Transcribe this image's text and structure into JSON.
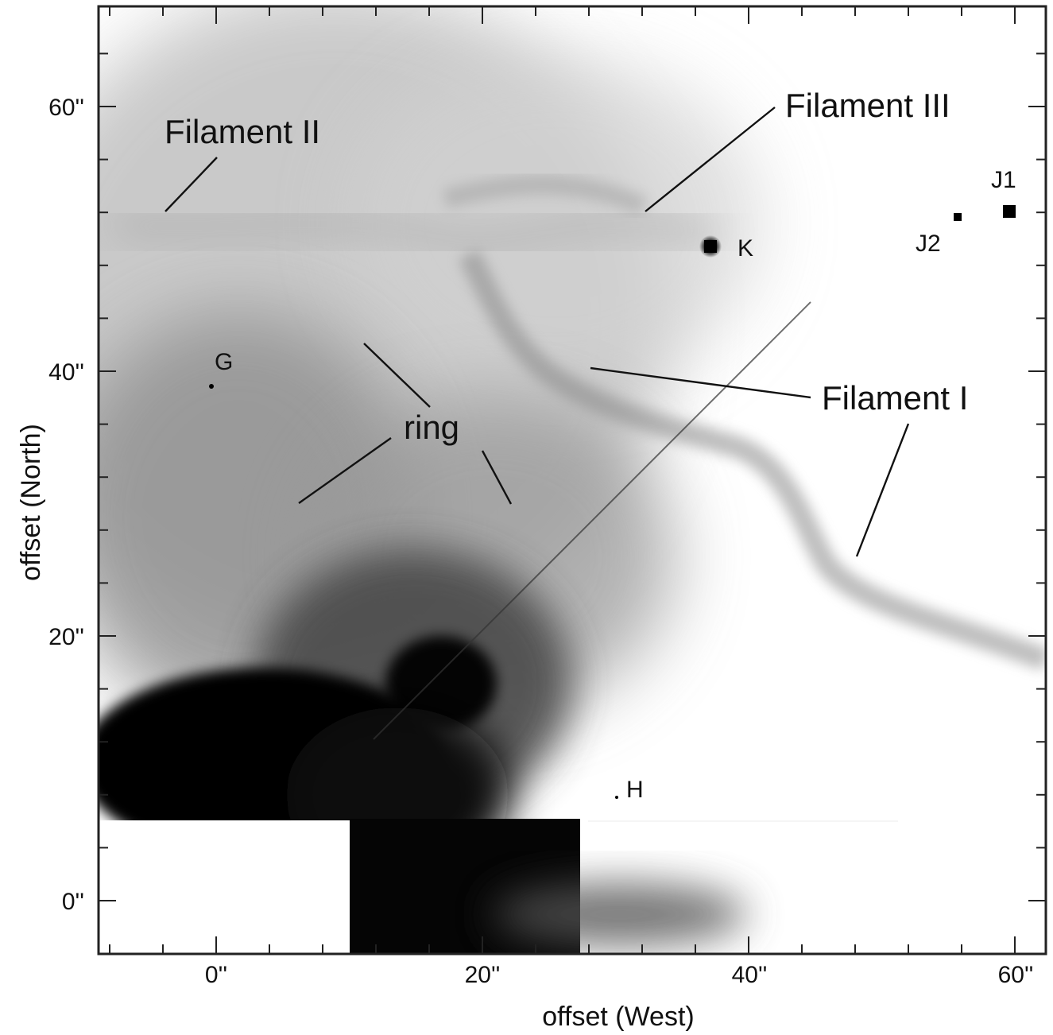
{
  "axes": {
    "x_label": "offset (West)",
    "y_label": "offset (North)",
    "x_ticks": [
      "0''",
      "20''",
      "40''",
      "60''"
    ],
    "y_ticks": [
      "0''",
      "20''",
      "40''",
      "60''"
    ]
  },
  "annotations": {
    "filament_1": "Filament I",
    "filament_2": "Filament II",
    "filament_3": "Filament III",
    "ring": "ring"
  },
  "stars": {
    "G": "G",
    "H": "H",
    "K": "K",
    "J1": "J1",
    "J2": "J2"
  },
  "colors": {
    "background": "#ffffff",
    "ink": "#111111"
  }
}
